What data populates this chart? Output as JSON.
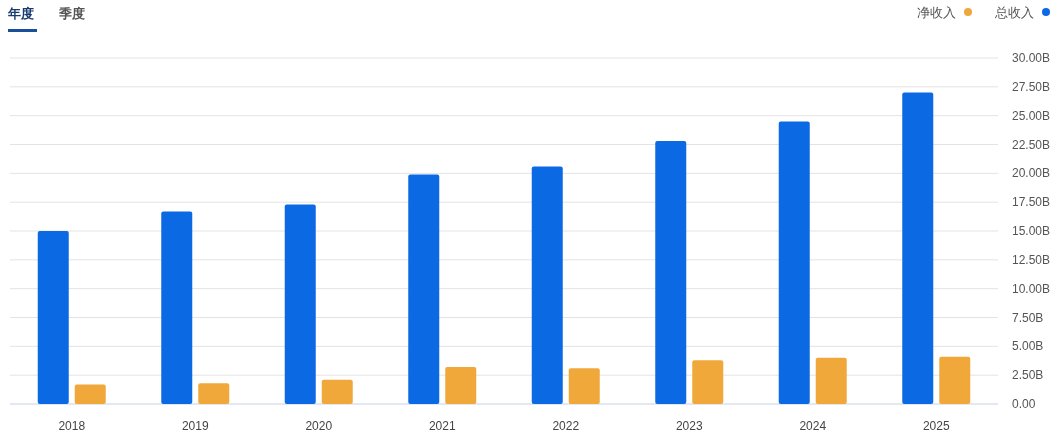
{
  "chart_data": {
    "type": "bar",
    "annotations": [
      "年度",
      "季度"
    ],
    "categories": [
      "2018",
      "2019",
      "2020",
      "2021",
      "2022",
      "2023",
      "2024",
      "2025"
    ],
    "series": [
      {
        "name": "总收入",
        "color": "#0b69e3",
        "values": [
          15.0,
          16.7,
          17.3,
          19.9,
          20.6,
          22.8,
          24.5,
          27.0
        ]
      },
      {
        "name": "净收入",
        "color": "#f0a83a",
        "values": [
          1.7,
          1.8,
          2.1,
          3.2,
          3.1,
          3.8,
          4.0,
          4.1
        ]
      }
    ],
    "ylim": [
      0,
      30
    ],
    "yticks": [
      {
        "value": 0,
        "label": "0.00"
      },
      {
        "value": 2.5,
        "label": "2.50B"
      },
      {
        "value": 5,
        "label": "5.00B"
      },
      {
        "value": 7.5,
        "label": "7.50B"
      },
      {
        "value": 10,
        "label": "10.00B"
      },
      {
        "value": 12.5,
        "label": "12.50B"
      },
      {
        "value": 15,
        "label": "15.00B"
      },
      {
        "value": 17.5,
        "label": "17.50B"
      },
      {
        "value": 20,
        "label": "20.00B"
      },
      {
        "value": 22.5,
        "label": "22.50B"
      },
      {
        "value": 25,
        "label": "25.00B"
      },
      {
        "value": 27.5,
        "label": "27.50B"
      },
      {
        "value": 30,
        "label": "30.00B"
      }
    ],
    "grid": "y",
    "legend": "top right"
  }
}
